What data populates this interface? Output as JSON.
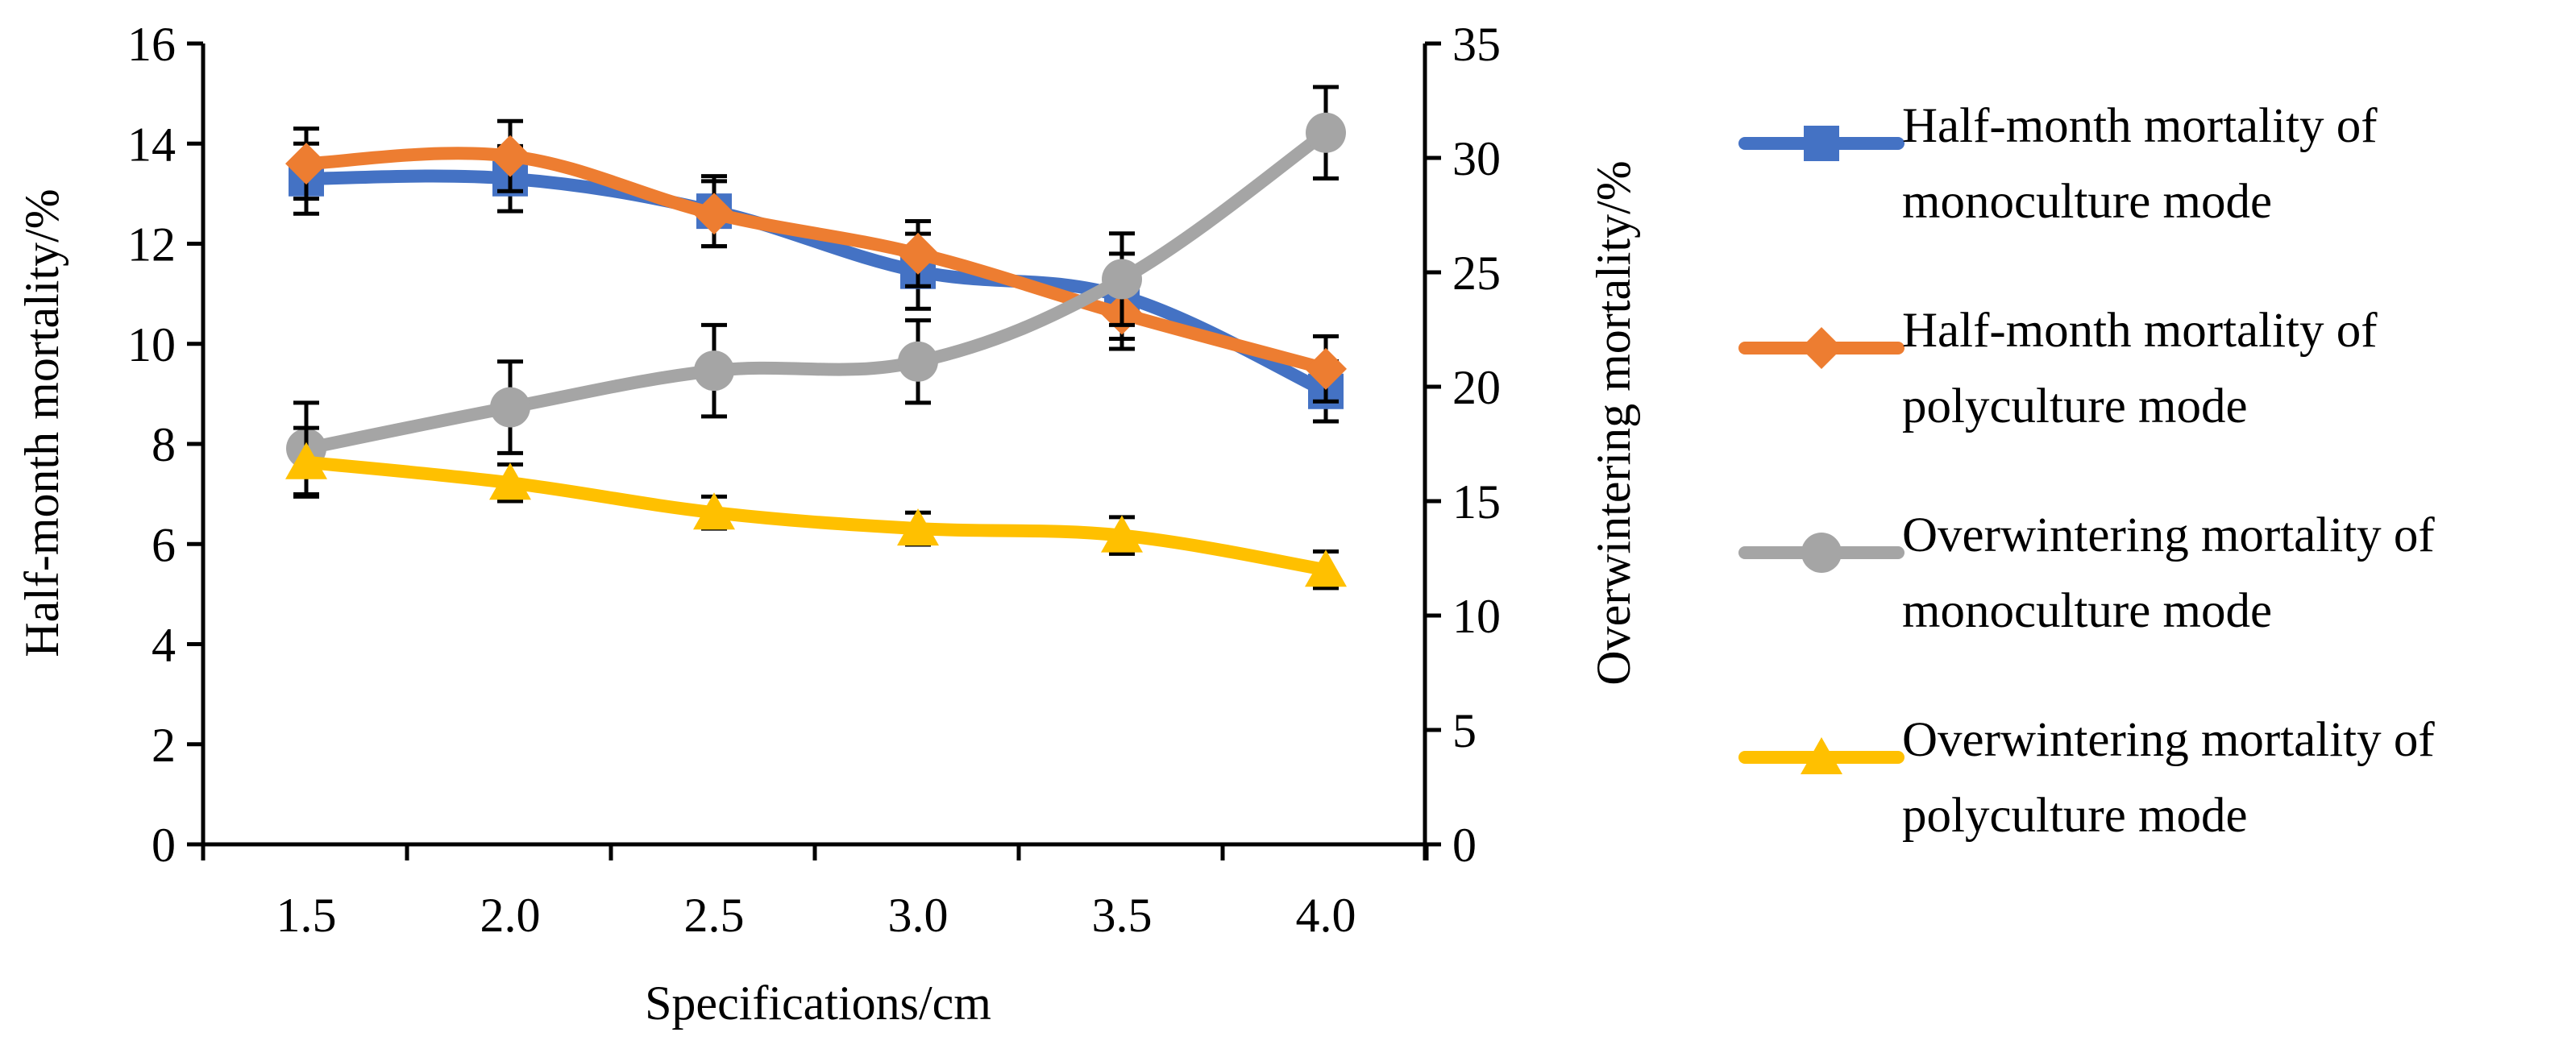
{
  "chart_data": {
    "type": "line",
    "x": [
      1.5,
      2.0,
      2.5,
      3.0,
      3.5,
      4.0
    ],
    "x_tick_labels": [
      "1.5",
      "2.0",
      "2.5",
      "3.0",
      "3.5",
      "4.0"
    ],
    "xlabel": "Specifications/cm",
    "ylabel": "Half-month mortality/%",
    "y2label": "Overwintering mortality/%",
    "ylim": [
      0,
      16
    ],
    "y2lim": [
      0,
      35
    ],
    "yticks": [
      "0",
      "2",
      "4",
      "6",
      "8",
      "10",
      "12",
      "14",
      "16"
    ],
    "y2ticks": [
      "0",
      "5",
      "10",
      "15",
      "20",
      "25",
      "30",
      "35"
    ],
    "grid": false,
    "legend_position": "right",
    "series": [
      {
        "name_lines": [
          "Half-month mortality of",
          "monoculture mode"
        ],
        "axis": "left",
        "color": "#4472C4",
        "marker": "square",
        "values": [
          13.3,
          13.3,
          12.65,
          11.45,
          10.95,
          9.05
        ],
        "errors": [
          0.7,
          0.65,
          0.7,
          0.75,
          0.85,
          0.6
        ]
      },
      {
        "name_lines": [
          "Half-month mortality of",
          "polyculture mode"
        ],
        "axis": "left",
        "color": "#ED7D31",
        "marker": "diamond",
        "values": [
          13.6,
          13.75,
          12.6,
          11.8,
          10.6,
          9.5
        ],
        "errors": [
          0.7,
          0.7,
          0.65,
          0.65,
          0.7,
          0.65
        ]
      },
      {
        "name_lines": [
          "Overwintering mortality of",
          "monoculture mode"
        ],
        "axis": "right",
        "color": "#A5A5A5",
        "marker": "circle",
        "values": [
          17.3,
          19.1,
          20.7,
          21.1,
          24.7,
          31.1
        ],
        "errors": [
          2.0,
          2.0,
          2.0,
          1.8,
          2.0,
          2.0
        ]
      },
      {
        "name_lines": [
          "Overwintering mortality of",
          "polyculture mode"
        ],
        "axis": "right",
        "color": "#FFC000",
        "marker": "triangle",
        "values": [
          16.7,
          15.8,
          14.5,
          13.8,
          13.5,
          12.0
        ],
        "errors": [
          1.5,
          0.8,
          0.7,
          0.7,
          0.8,
          0.8
        ]
      }
    ]
  }
}
